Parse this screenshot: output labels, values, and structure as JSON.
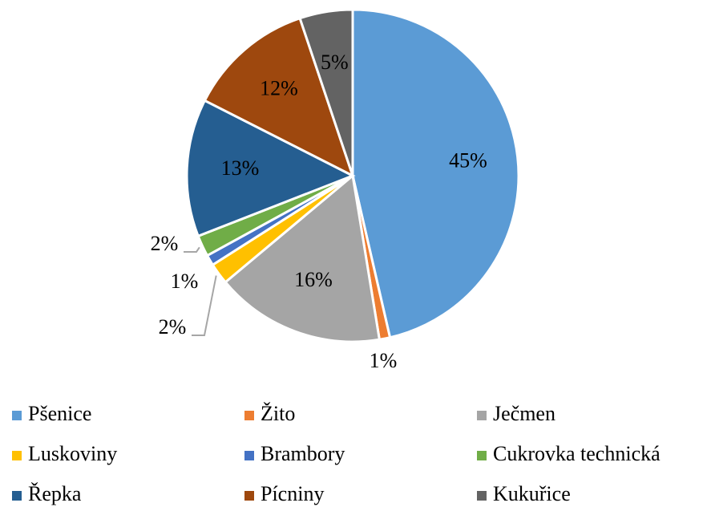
{
  "chart_data": {
    "type": "pie",
    "categories": [
      "Pšenice",
      "Žito",
      "Ječmen",
      "Luskoviny",
      "Brambory",
      "Cukrovka technická",
      "Řepka",
      "Pícniny",
      "Kukuřice"
    ],
    "values": [
      45,
      1,
      16,
      2,
      1,
      2,
      13,
      12,
      5
    ],
    "value_labels": [
      "45%",
      "1%",
      "16%",
      "2%",
      "1%",
      "2%",
      "13%",
      "12%",
      "5%"
    ],
    "colors": [
      "#5b9bd5",
      "#ed7d31",
      "#a5a5a5",
      "#ffc000",
      "#4472c4",
      "#70ad47",
      "#255e91",
      "#9e480e",
      "#636363"
    ],
    "legend": "bottom"
  }
}
